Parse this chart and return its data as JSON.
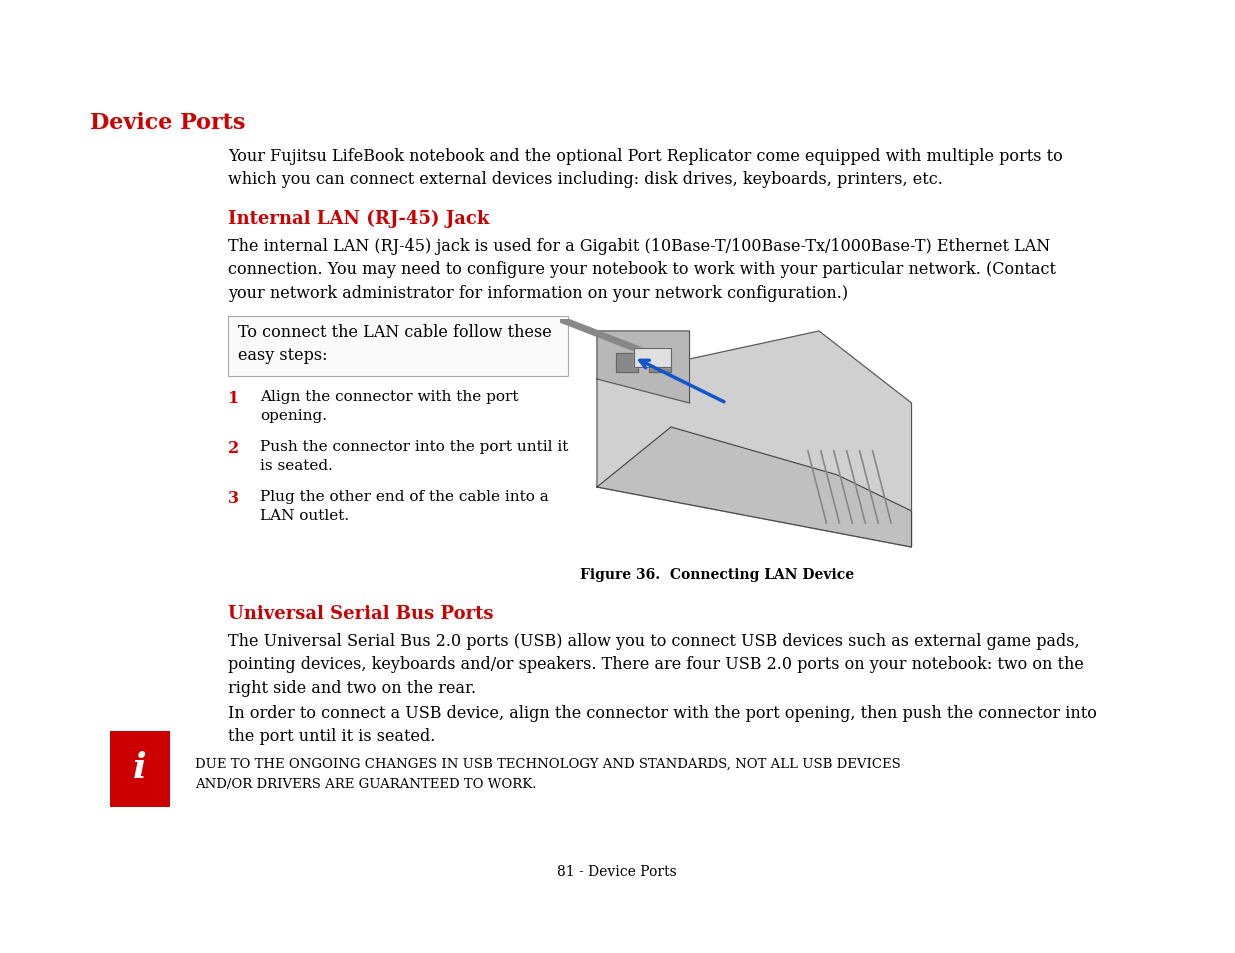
{
  "bg_color": "#ffffff",
  "red_color": "#cc0000",
  "black_color": "#000000",
  "title": "Device Ports",
  "intro": "Your Fujitsu LifeBook notebook and the optional Port Replicator come equipped with multiple ports to\nwhich you can connect external devices including: disk drives, keyboards, printers, etc.",
  "sec1_title": "Internal LAN (RJ-45) Jack",
  "sec1_body": "The internal LAN (RJ-45) jack is used for a Gigabit (10Base-T/100Base-Tx/1000Base-T) Ethernet LAN\nconnection. You may need to configure your notebook to work with your particular network. (Contact\nyour network administrator for information on your network configuration.)",
  "steps_intro": "To connect the LAN cable follow these\neasy steps:",
  "step1_num": "1",
  "step1_text": "Align the connector with the port\nopening.",
  "step2_num": "2",
  "step2_text": "Push the connector into the port until it\nis seated.",
  "step3_num": "3",
  "step3_text": "Plug the other end of the cable into a\nLAN outlet.",
  "fig_caption": "Figure 36.  Connecting LAN Device",
  "sec2_title": "Universal Serial Bus Ports",
  "sec2_body": "The Universal Serial Bus 2.0 ports (USB) allow you to connect USB devices such as external game pads,\npointing devices, keyboards and/or speakers. There are four USB 2.0 ports on your notebook: two on the\nright side and two on the rear.",
  "usb_para2": "In order to connect a USB device, align the connector with the port opening, then push the connector into\nthe port until it is seated.",
  "note_line1": "DUE TO THE ONGOING CHANGES IN USB TECHNOLOGY AND STANDARDS, NOT ALL USB DEVICES",
  "note_line2": "AND/OR DRIVERS ARE GUARANTEED TO WORK.",
  "footer": "81 - Device Ports",
  "body_fs": 11.5,
  "title_fs": 16,
  "sec_title_fs": 13,
  "note_fs": 9.5,
  "footer_fs": 10
}
